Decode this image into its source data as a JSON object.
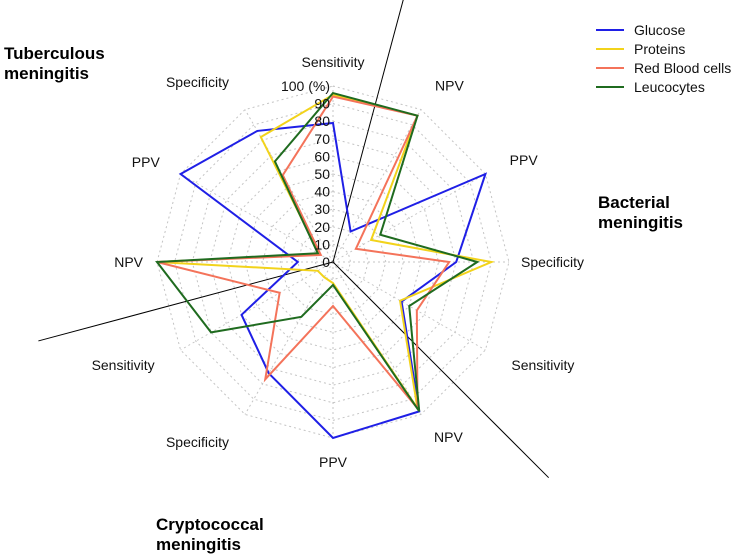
{
  "chart_data": {
    "type": "radar",
    "unit_label": "100 (%)",
    "r_range": [
      0,
      100
    ],
    "r_ticks": [
      0,
      10,
      20,
      30,
      40,
      50,
      60,
      70,
      80,
      90
    ],
    "axes": [
      {
        "label": "Sensitivity",
        "group": "Tuberculous meningitis"
      },
      {
        "label": "NPV",
        "group": "Bacterial meningitis"
      },
      {
        "label": "PPV",
        "group": "Bacterial meningitis"
      },
      {
        "label": "Specificity",
        "group": "Bacterial meningitis"
      },
      {
        "label": "Sensitivity",
        "group": "Bacterial meningitis"
      },
      {
        "label": "NPV",
        "group": "Cryptococcal meningitis"
      },
      {
        "label": "PPV",
        "group": "Cryptococcal meningitis"
      },
      {
        "label": "Specificity",
        "group": "Cryptococcal meningitis"
      },
      {
        "label": "Sensitivity",
        "group": "Cryptococcal meningitis"
      },
      {
        "label": "NPV",
        "group": "Tuberculous meningitis"
      },
      {
        "label": "PPV",
        "group": "Tuberculous meningitis"
      },
      {
        "label": "Specificity",
        "group": "Tuberculous meningitis"
      }
    ],
    "series": [
      {
        "name": "Glucose",
        "color": "#1f1fe6",
        "values": [
          79,
          20,
          100,
          70,
          45,
          98,
          100,
          73,
          60,
          20,
          100,
          86
        ]
      },
      {
        "name": "Proteins",
        "color": "#f2d31b",
        "values": [
          95,
          96,
          25,
          90,
          44,
          96,
          12,
          10,
          10,
          100,
          9,
          82
        ]
      },
      {
        "name": "Red Blood cells",
        "color": "#f4735a",
        "values": [
          94,
          96,
          15,
          66,
          55,
          96,
          25,
          77,
          35,
          100,
          8,
          57
        ]
      },
      {
        "name": "Leucocytes",
        "color": "#1f6b1f",
        "values": [
          96,
          96,
          31,
          82,
          50,
          98,
          13,
          36,
          80,
          100,
          10,
          66
        ]
      }
    ],
    "groups": [
      {
        "name": "Tuberculous meningitis"
      },
      {
        "name": "Bacterial meningitis"
      },
      {
        "name": "Cryptococcal meningitis"
      }
    ],
    "divider_angles_deg": [
      15,
      135,
      255
    ],
    "legend_position": "top-right"
  },
  "titles": {
    "tb_line1": "Tuberculous",
    "tb_line2": "meningitis",
    "bact_line1": "Bacterial",
    "bact_line2": "meningitis",
    "crypto_line1": "Cryptococcal",
    "crypto_line2": "meningitis"
  }
}
